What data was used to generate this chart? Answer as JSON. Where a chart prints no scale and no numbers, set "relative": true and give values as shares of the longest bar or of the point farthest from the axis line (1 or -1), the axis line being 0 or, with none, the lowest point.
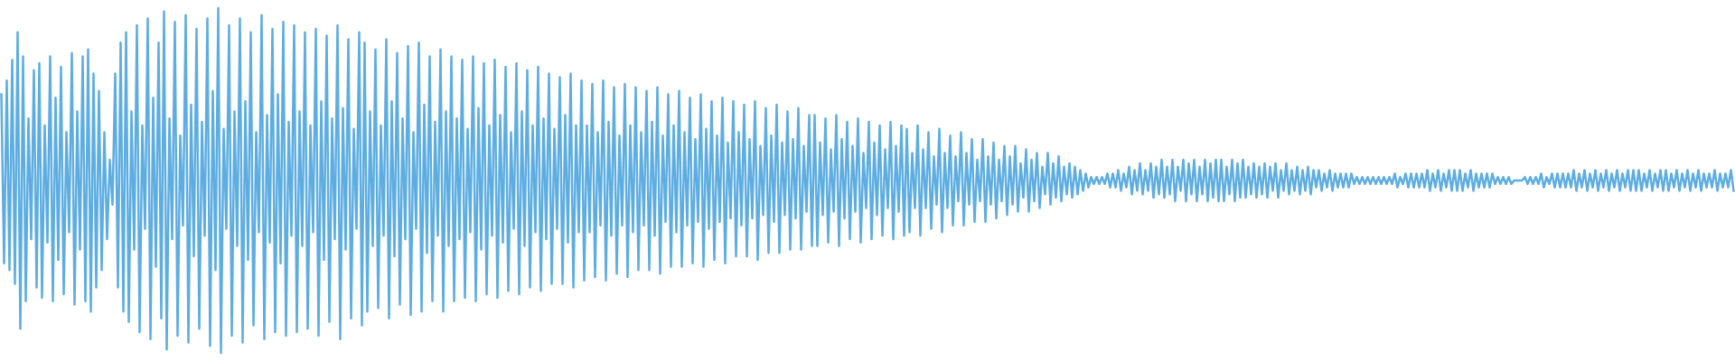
{
  "chart_data": {
    "type": "line",
    "relative": true,
    "categories": [
      null,
      null,
      null,
      null,
      null,
      null,
      null,
      null,
      null,
      null,
      null,
      null,
      null,
      null,
      null,
      null,
      null,
      null,
      null,
      null,
      null,
      null,
      null,
      null,
      null,
      null,
      null,
      null,
      null,
      null,
      null,
      null,
      null,
      null,
      null,
      null,
      null,
      null,
      null,
      null,
      null,
      null,
      null,
      null,
      null,
      null,
      null,
      null,
      null,
      null,
      null,
      null,
      null,
      null,
      null,
      null,
      null,
      null,
      null,
      null,
      null,
      null,
      null,
      null,
      null,
      null,
      null,
      null,
      null,
      null,
      null,
      null,
      null,
      null,
      null,
      null,
      null,
      null,
      null,
      null,
      null,
      null,
      null,
      null,
      null,
      null,
      null,
      null,
      null,
      null,
      null,
      null,
      null,
      null,
      null,
      null,
      null,
      null,
      null,
      null,
      null,
      null,
      null,
      null,
      null,
      null,
      null,
      null,
      null,
      null,
      null,
      null,
      null,
      null,
      null,
      null,
      null,
      null,
      null,
      null,
      null,
      null,
      null,
      null,
      null,
      null,
      null,
      null,
      null,
      null,
      null,
      null,
      null,
      null,
      null,
      null,
      null,
      null,
      null,
      null,
      null,
      null,
      null,
      null,
      null,
      null,
      null,
      null,
      null,
      null,
      null,
      null,
      null,
      null,
      null,
      null,
      null,
      null,
      null,
      null,
      null,
      null,
      null,
      null,
      null,
      null,
      null,
      null,
      null,
      null,
      null,
      null,
      null,
      null,
      null,
      null,
      null,
      null,
      null,
      null,
      null,
      null,
      null,
      null,
      null,
      null,
      null,
      null,
      null,
      null,
      null,
      null,
      null,
      null,
      null,
      null,
      null,
      null,
      null,
      null,
      null,
      null,
      null,
      null,
      null,
      null,
      null,
      null,
      null,
      null,
      null,
      null,
      null,
      null,
      null,
      null,
      null,
      null,
      null,
      null,
      null,
      null,
      null,
      null,
      null,
      null,
      null,
      null,
      null,
      null,
      null,
      null,
      null,
      null,
      null,
      null,
      null,
      null,
      null,
      null,
      null,
      null,
      null,
      null,
      null,
      null,
      null,
      null,
      null,
      null,
      null,
      null,
      null,
      null,
      null,
      null,
      null,
      null,
      null,
      null,
      null,
      null,
      null,
      null,
      null,
      null,
      null,
      null,
      null,
      null,
      null,
      null,
      null,
      null,
      null,
      null,
      null,
      null,
      null,
      null,
      null,
      null,
      null,
      null,
      null,
      null,
      null,
      null,
      null,
      null,
      null,
      null,
      null,
      null,
      null,
      null,
      null,
      null,
      null,
      null,
      null,
      null,
      null,
      null,
      null,
      null,
      null,
      null,
      null,
      null,
      null,
      null,
      null,
      null,
      null,
      null,
      null,
      null,
      null,
      null,
      null,
      null,
      null,
      null,
      null,
      null,
      null,
      null,
      null,
      null,
      null,
      null,
      null,
      null,
      null,
      null,
      null,
      null,
      null,
      null,
      null,
      null,
      null,
      null,
      null,
      null,
      null,
      null,
      null,
      null,
      null,
      null,
      null,
      null,
      null,
      null,
      null,
      null,
      null,
      null,
      null,
      null,
      null,
      null,
      null,
      null,
      null,
      null,
      null,
      null,
      null,
      null,
      null,
      null,
      null,
      null,
      null,
      null,
      null,
      null,
      null,
      null,
      null,
      null,
      null,
      null,
      null,
      null,
      null,
      null,
      null,
      null,
      null,
      null,
      null,
      null,
      null,
      null,
      null,
      null,
      null,
      null,
      null,
      null,
      null,
      null,
      null,
      null,
      null,
      null,
      null,
      null,
      null,
      null,
      null,
      null,
      null,
      null,
      null,
      null,
      null,
      null,
      null,
      null,
      null,
      null,
      null,
      null,
      null,
      null,
      null,
      null,
      null,
      null,
      null,
      null,
      null,
      null,
      null,
      null,
      null,
      null,
      null,
      null,
      null,
      null,
      null,
      null,
      null,
      null,
      null,
      null,
      null,
      null,
      null,
      null,
      null,
      null,
      null,
      null,
      null,
      null,
      null,
      null,
      null,
      null,
      null,
      null,
      null,
      null,
      null,
      null,
      null,
      null,
      null,
      null,
      null,
      null,
      null,
      null,
      null,
      null,
      null,
      null,
      null,
      null,
      null,
      null,
      null,
      null,
      null,
      null,
      null,
      null,
      null,
      null,
      null,
      null,
      null,
      null,
      null,
      null,
      null,
      null,
      null,
      null,
      null,
      null,
      null,
      null,
      null,
      null,
      null,
      null,
      null,
      null,
      null,
      null,
      null,
      null,
      null,
      null,
      null,
      null,
      null,
      null,
      null,
      null,
      null,
      null,
      null,
      null,
      null,
      null,
      null,
      null,
      null,
      null,
      null,
      null,
      null,
      null,
      null,
      null,
      null,
      null,
      null,
      null,
      null,
      null,
      null,
      null,
      null,
      null,
      null,
      null,
      null,
      null,
      null,
      null,
      null,
      null,
      null,
      null,
      null,
      null,
      null,
      null,
      null,
      null,
      null,
      null,
      null,
      null,
      null,
      null,
      null,
      null,
      null,
      null,
      null,
      null,
      null,
      null,
      null,
      null,
      null,
      null,
      null,
      null,
      null,
      null,
      null,
      null,
      null,
      null,
      null,
      null,
      null,
      null,
      null,
      null,
      null,
      null,
      null,
      null,
      null,
      null,
      null,
      null,
      null,
      null,
      null,
      null,
      null,
      null,
      null,
      null,
      null,
      null,
      null,
      null,
      null,
      null,
      null,
      null,
      null,
      null,
      null,
      null,
      null,
      null,
      null,
      null,
      null,
      null,
      null,
      null,
      null,
      null
    ],
    "series": [
      {
        "color": "#5dade2",
        "values": [
          0.75,
          0.26,
          0.79,
          0.24,
          0.85,
          0.2,
          0.93,
          0.07,
          0.86,
          0.15,
          0.68,
          0.33,
          0.82,
          0.19,
          0.84,
          0.16,
          0.66,
          0.32,
          0.86,
          0.15,
          0.74,
          0.27,
          0.83,
          0.17,
          0.64,
          0.35,
          0.87,
          0.14,
          0.7,
          0.3,
          0.86,
          0.15,
          0.88,
          0.12,
          0.81,
          0.19,
          0.76,
          0.24,
          0.64,
          0.33,
          0.56,
          0.43,
          0.81,
          0.19,
          0.9,
          0.12,
          0.93,
          0.09,
          0.7,
          0.3,
          0.95,
          0.06,
          0.66,
          0.36,
          0.97,
          0.04,
          0.74,
          0.25,
          0.9,
          0.1,
          0.99,
          0.01,
          0.68,
          0.33,
          0.96,
          0.05,
          0.63,
          0.37,
          0.98,
          0.03,
          0.72,
          0.28,
          0.94,
          0.07,
          0.67,
          0.34,
          0.97,
          0.02,
          0.76,
          0.24,
          1.0,
          0.0,
          0.65,
          0.36,
          0.95,
          0.05,
          0.7,
          0.31,
          0.97,
          0.03,
          0.73,
          0.27,
          0.93,
          0.08,
          0.64,
          0.35,
          0.98,
          0.04,
          0.69,
          0.32,
          0.94,
          0.06,
          0.75,
          0.26,
          0.96,
          0.05,
          0.67,
          0.34,
          0.95,
          0.06,
          0.7,
          0.31,
          0.93,
          0.07,
          0.66,
          0.35,
          0.94,
          0.05,
          0.73,
          0.27,
          0.92,
          0.09,
          0.68,
          0.33,
          0.95,
          0.04,
          0.71,
          0.3,
          0.91,
          0.1,
          0.65,
          0.36,
          0.93,
          0.08,
          0.9,
          0.12,
          0.7,
          0.31,
          0.88,
          0.13,
          0.66,
          0.34,
          0.91,
          0.1,
          0.73,
          0.28,
          0.87,
          0.14,
          0.68,
          0.33,
          0.89,
          0.11,
          0.64,
          0.36,
          0.9,
          0.12,
          0.72,
          0.29,
          0.86,
          0.15,
          0.67,
          0.34,
          0.88,
          0.12,
          0.7,
          0.31,
          0.86,
          0.15,
          0.68,
          0.33,
          0.85,
          0.16,
          0.65,
          0.35,
          0.86,
          0.15,
          0.71,
          0.3,
          0.84,
          0.17,
          0.66,
          0.34,
          0.85,
          0.16,
          0.69,
          0.32,
          0.83,
          0.18,
          0.64,
          0.36,
          0.84,
          0.17,
          0.7,
          0.31,
          0.82,
          0.19,
          0.66,
          0.35,
          0.83,
          0.18,
          0.68,
          0.33,
          0.81,
          0.2,
          0.65,
          0.36,
          0.8,
          0.2,
          0.69,
          0.32,
          0.81,
          0.19,
          0.66,
          0.35,
          0.79,
          0.21,
          0.66,
          0.35,
          0.78,
          0.22,
          0.64,
          0.37,
          0.79,
          0.21,
          0.67,
          0.34,
          0.77,
          0.23,
          0.63,
          0.37,
          0.78,
          0.22,
          0.66,
          0.35,
          0.77,
          0.24,
          0.64,
          0.37,
          0.76,
          0.24,
          0.67,
          0.34,
          0.77,
          0.23,
          0.63,
          0.38,
          0.75,
          0.25,
          0.66,
          0.35,
          0.76,
          0.25,
          0.64,
          0.37,
          0.74,
          0.26,
          0.62,
          0.38,
          0.75,
          0.25,
          0.65,
          0.36,
          0.73,
          0.27,
          0.63,
          0.38,
          0.74,
          0.26,
          0.61,
          0.39,
          0.73,
          0.28,
          0.64,
          0.37,
          0.72,
          0.28,
          0.62,
          0.39,
          0.73,
          0.27,
          0.6,
          0.4,
          0.71,
          0.29,
          0.63,
          0.38,
          0.72,
          0.29,
          0.61,
          0.4,
          0.7,
          0.3,
          0.62,
          0.39,
          0.71,
          0.3,
          0.6,
          0.41,
          0.69,
          0.31,
          0.69,
          0.31,
          0.61,
          0.4,
          0.68,
          0.32,
          0.59,
          0.41,
          0.69,
          0.31,
          0.62,
          0.39,
          0.67,
          0.33,
          0.6,
          0.41,
          0.68,
          0.32,
          0.58,
          0.42,
          0.67,
          0.33,
          0.61,
          0.4,
          0.66,
          0.34,
          0.59,
          0.42,
          0.67,
          0.33,
          0.6,
          0.41,
          0.66,
          0.34,
          0.65,
          0.35,
          0.58,
          0.42,
          0.66,
          0.34,
          0.59,
          0.42,
          0.64,
          0.36,
          0.57,
          0.43,
          0.65,
          0.35,
          0.58,
          0.42,
          0.63,
          0.37,
          0.57,
          0.44,
          0.64,
          0.37,
          0.58,
          0.43,
          0.62,
          0.38,
          0.56,
          0.44,
          0.62,
          0.38,
          0.57,
          0.43,
          0.61,
          0.39,
          0.56,
          0.44,
          0.6,
          0.4,
          0.57,
          0.43,
          0.6,
          0.41,
          0.55,
          0.45,
          0.59,
          0.41,
          0.56,
          0.44,
          0.58,
          0.42,
          0.54,
          0.46,
          0.58,
          0.43,
          0.55,
          0.45,
          0.57,
          0.44,
          0.54,
          0.46,
          0.55,
          0.45,
          0.54,
          0.46,
          0.53,
          0.47,
          0.52,
          0.48,
          0.51,
          0.49,
          0.51,
          0.49,
          0.51,
          0.49,
          0.52,
          0.48,
          0.52,
          0.48,
          0.53,
          0.47,
          0.52,
          0.48,
          0.54,
          0.46,
          0.53,
          0.47,
          0.55,
          0.46,
          0.53,
          0.47,
          0.55,
          0.45,
          0.54,
          0.46,
          0.56,
          0.45,
          0.54,
          0.46,
          0.56,
          0.44,
          0.54,
          0.47,
          0.56,
          0.44,
          0.55,
          0.46,
          0.56,
          0.44,
          0.54,
          0.46,
          0.56,
          0.44,
          0.55,
          0.45,
          0.56,
          0.44,
          0.56,
          0.44,
          0.54,
          0.46,
          0.56,
          0.44,
          0.55,
          0.45,
          0.56,
          0.45,
          0.54,
          0.46,
          0.55,
          0.45,
          0.54,
          0.46,
          0.55,
          0.45,
          0.54,
          0.47,
          0.55,
          0.45,
          0.53,
          0.47,
          0.55,
          0.46,
          0.53,
          0.47,
          0.54,
          0.46,
          0.53,
          0.47,
          0.54,
          0.46,
          0.53,
          0.48,
          0.53,
          0.47,
          0.52,
          0.48,
          0.53,
          0.47,
          0.52,
          0.48,
          0.52,
          0.48,
          0.52,
          0.48,
          0.52,
          0.49,
          0.51,
          0.49,
          0.51,
          0.49,
          0.51,
          0.49,
          0.51,
          0.49,
          0.51,
          0.49,
          0.51,
          0.49,
          0.51,
          0.49,
          0.52,
          0.48,
          0.51,
          0.49,
          0.52,
          0.48,
          0.52,
          0.48,
          0.52,
          0.48,
          0.52,
          0.48,
          0.53,
          0.47,
          0.52,
          0.48,
          0.53,
          0.47,
          0.52,
          0.48,
          0.53,
          0.47,
          0.53,
          0.47,
          0.53,
          0.47,
          0.52,
          0.48,
          0.53,
          0.47,
          0.52,
          0.48,
          0.52,
          0.48,
          0.52,
          0.48,
          0.52,
          0.49,
          0.51,
          0.49,
          0.51,
          0.49,
          0.51,
          0.49,
          0.5,
          0.5,
          0.5,
          0.5,
          0.51,
          0.49,
          0.51,
          0.49,
          0.51,
          0.49,
          0.52,
          0.48,
          0.51,
          0.49,
          0.52,
          0.48,
          0.52,
          0.48,
          0.52,
          0.48,
          0.52,
          0.48,
          0.53,
          0.47,
          0.52,
          0.48,
          0.53,
          0.47,
          0.52,
          0.48,
          0.53,
          0.47,
          0.52,
          0.48,
          0.53,
          0.47,
          0.52,
          0.48,
          0.53,
          0.47,
          0.52,
          0.48,
          0.53,
          0.47,
          0.53,
          0.47,
          0.53,
          0.47,
          0.52,
          0.48,
          0.53,
          0.47,
          0.52,
          0.48,
          0.53,
          0.47,
          0.53,
          0.47,
          0.52,
          0.48,
          0.53,
          0.47,
          0.52,
          0.48,
          0.53,
          0.47,
          0.52,
          0.48,
          0.53,
          0.47,
          0.52,
          0.48,
          0.52,
          0.48,
          0.53,
          0.47,
          0.52,
          0.48,
          0.52,
          0.48,
          0.53,
          0.47
        ]
      }
    ]
  }
}
